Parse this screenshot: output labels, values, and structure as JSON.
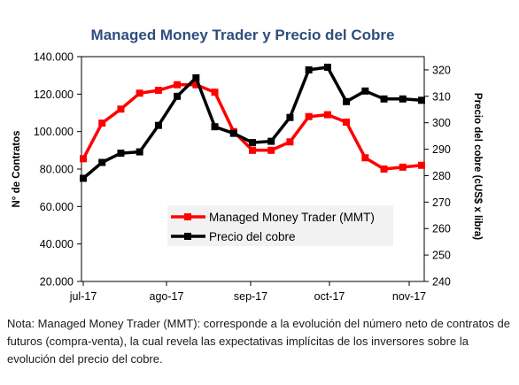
{
  "chart_data": {
    "type": "line",
    "title": "Managed Money Trader y Precio del Cobre",
    "ylabel_left": "N° de Contratos",
    "ylabel_right": "Precio del cobre (cUS$ x libra)",
    "x_tick_labels": [
      "jul-17",
      "ago-17",
      "sep-17",
      "oct-17",
      "nov-17"
    ],
    "y_left_ticks": [
      "20.000",
      "40.000",
      "60.000",
      "80.000",
      "100.000",
      "120.000",
      "140.000"
    ],
    "y_right_ticks": [
      "240",
      "250",
      "260",
      "270",
      "280",
      "290",
      "300",
      "310",
      "320"
    ],
    "y_left_range": [
      20000,
      140000
    ],
    "y_right_range": [
      240,
      325
    ],
    "legend_position": "center-bottom",
    "series": [
      {
        "name": "Managed Money Trader (MMT)",
        "axis": "left",
        "color": "#ff0000",
        "values": [
          85500,
          104500,
          112000,
          120500,
          122000,
          125000,
          125000,
          121000,
          100000,
          90000,
          90000,
          94500,
          108000,
          109000,
          105000,
          86000,
          80000,
          81000,
          82000
        ]
      },
      {
        "name": "Precio del cobre",
        "axis": "right",
        "color": "#000000",
        "values": [
          279,
          285,
          288.5,
          289,
          299,
          310,
          317,
          298.5,
          296,
          292.5,
          293,
          302,
          320,
          321,
          308,
          312,
          309,
          309,
          308.5
        ]
      }
    ]
  },
  "note": {
    "text": "Nota: Managed Money Trader (MMT): corresponde a la evolución del número neto de contratos de futuros (compra-venta), la cual revela las expectativas implícitas de los inversores sobre la evolución del precio del cobre."
  }
}
